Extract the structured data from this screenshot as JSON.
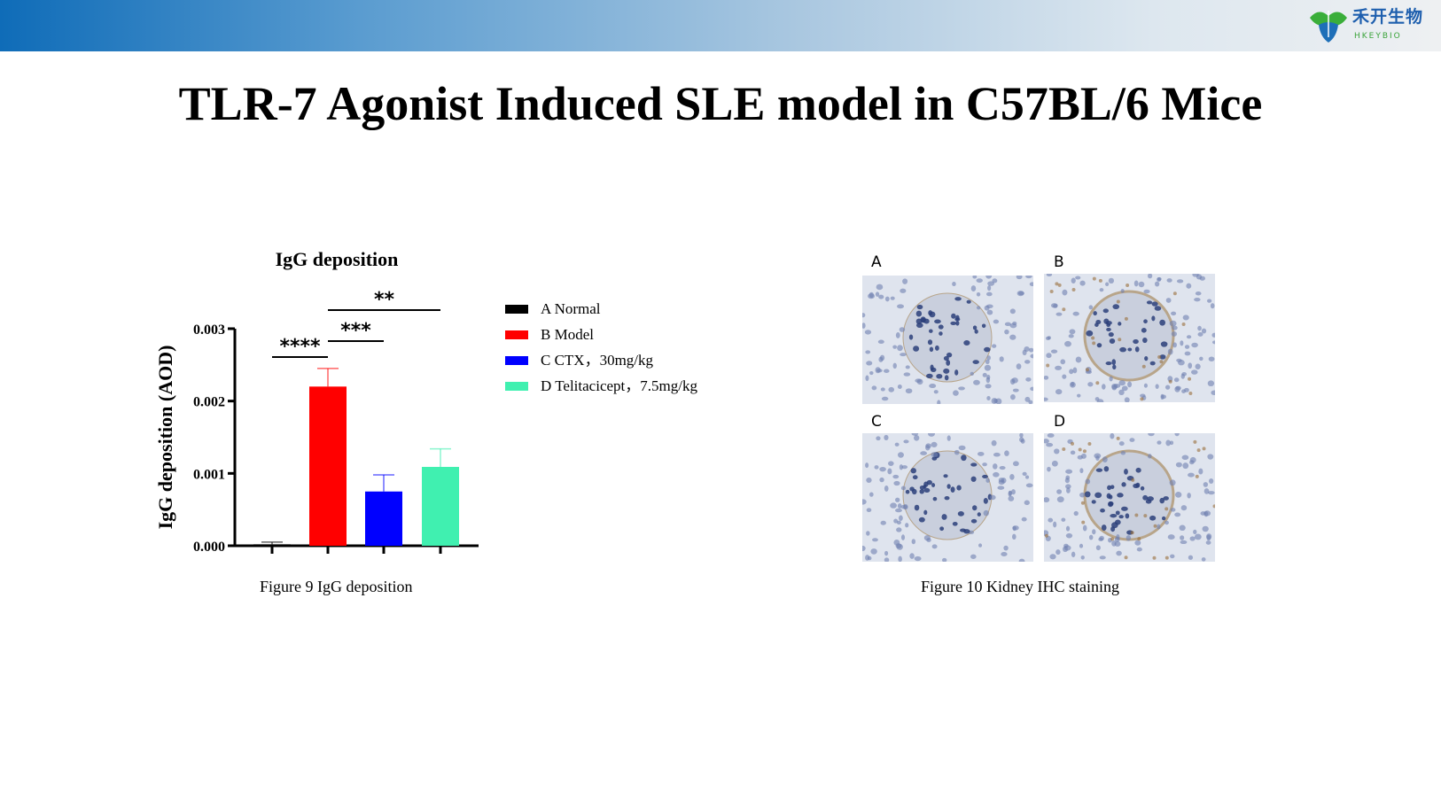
{
  "header": {
    "logo_cn": "禾开生物",
    "logo_en": "HKEYBIO"
  },
  "title": "TLR-7 Agonist Induced SLE model in C57BL/6 Mice",
  "chart_data": {
    "type": "bar",
    "title": "IgG deposition",
    "ylabel": "IgG deposition (AOD)",
    "xlabel": "",
    "ylim": [
      0,
      0.003
    ],
    "yticks": [
      "0.000",
      "0.001",
      "0.002",
      "0.003"
    ],
    "categories": [
      "A Normal",
      "B Model",
      "C CTX，30mg/kg",
      "D Telitacicept，7.5mg/kg"
    ],
    "values": [
      2e-05,
      0.0022,
      0.00075,
      0.00109
    ],
    "error_upper": [
      5e-05,
      0.00245,
      0.00098,
      0.00134
    ],
    "colors": [
      "#000000",
      "#ff0000",
      "#0000ff",
      "#40f0b0"
    ],
    "significance": [
      {
        "from": 0,
        "to": 1,
        "label": "****"
      },
      {
        "from": 1,
        "to": 2,
        "label": "***"
      },
      {
        "from": 1,
        "to": 3,
        "label": "**"
      }
    ],
    "legend_placement": "right"
  },
  "figures": {
    "fig9_caption": "Figure 9 IgG deposition",
    "fig10_caption": "Figure 10 Kidney IHC staining",
    "panels": [
      "A",
      "B",
      "C",
      "D"
    ]
  }
}
